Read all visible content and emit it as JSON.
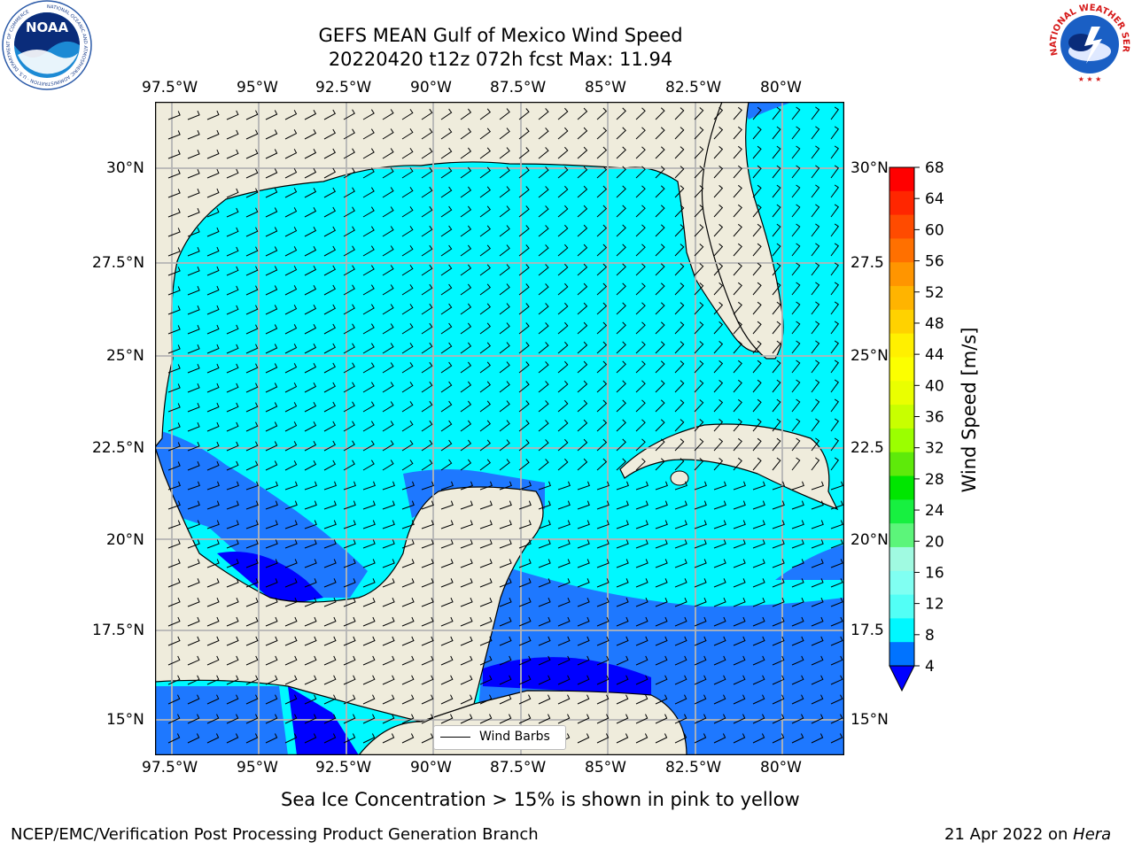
{
  "title": {
    "line1": "GEFS MEAN Gulf of Mexico Wind Speed",
    "line2": "20220420 t12z 072h fcst   Max: 11.94"
  },
  "logos": {
    "noaa_text": "NOAA",
    "noaa_ring": "NATIONAL OCEANIC AND ATMOSPHERIC ADMINISTRATION · U.S. DEPARTMENT OF COMMERCE",
    "nws_ring": "NATIONAL WEATHER SERVICE"
  },
  "axes": {
    "lon_ticks": [
      "97.5°W",
      "95°W",
      "92.5°W",
      "90°W",
      "87.5°W",
      "85°W",
      "82.5°W",
      "80°W"
    ],
    "lat_ticks_left": [
      "30°N",
      "27.5°N",
      "25°N",
      "22.5°N",
      "20°N",
      "17.5°N",
      "15°N"
    ],
    "lat_ticks_right": [
      "30°N",
      "27.5",
      "25°N",
      "22.5",
      "20°N",
      "17.5",
      "15°N"
    ]
  },
  "legend": {
    "label": "Wind Barbs"
  },
  "colorbar": {
    "label": "Wind Speed [m/s]",
    "ticks": [
      "68",
      "64",
      "60",
      "56",
      "52",
      "48",
      "44",
      "40",
      "36",
      "32",
      "28",
      "24",
      "20",
      "16",
      "12",
      "8",
      "4"
    ],
    "colors": [
      "#ff0000",
      "#ff2600",
      "#ff4b00",
      "#ff7000",
      "#ff9500",
      "#ffb400",
      "#ffd200",
      "#fff000",
      "#fcff00",
      "#eaff00",
      "#c8ff00",
      "#9bff00",
      "#5eea0a",
      "#00e600",
      "#17f040",
      "#5cf57a",
      "#a0fae1",
      "#80fff2",
      "#52fff6",
      "#00f8ff",
      "#0073ff"
    ],
    "extend_color": "#0000ff"
  },
  "notes": {
    "sea_ice": "Sea Ice Concentration > 15% is shown in pink to yellow",
    "credit": "NCEP/EMC/Verification Post Processing Product Generation Branch",
    "date": "21 Apr 2022 on ",
    "host": "Hera"
  },
  "map_colors": {
    "land": "#efecdc",
    "band_4_8": "#1e78ff",
    "band_8_12": "#00f8ff",
    "below_4": "#0000ff",
    "grid": "#b4b4b4"
  }
}
